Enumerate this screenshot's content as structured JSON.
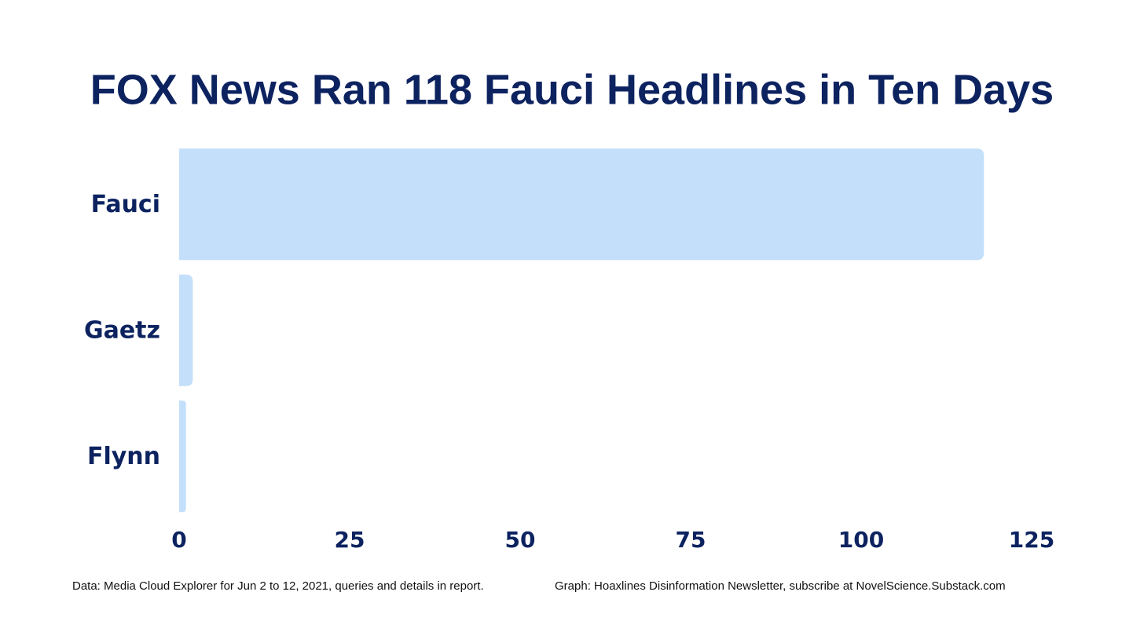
{
  "chart_data": {
    "type": "bar",
    "orientation": "horizontal",
    "title": "FOX News Ran 118 Fauci Headlines in Ten Days",
    "categories": [
      "Fauci",
      "Gaetz",
      "Flynn"
    ],
    "values": [
      118,
      2,
      1
    ],
    "color": "#c3dffa",
    "xlim": [
      0,
      125
    ],
    "xticks": [
      0,
      25,
      50,
      75,
      100,
      125
    ],
    "notes": [
      "Data: Media Cloud Explorer for Jun 2 to 12, 2021, queries and details in report.",
      "Graph: Hoaxlines Disinformation Newsletter, subscribe at NovelScience.Substack.com"
    ]
  }
}
